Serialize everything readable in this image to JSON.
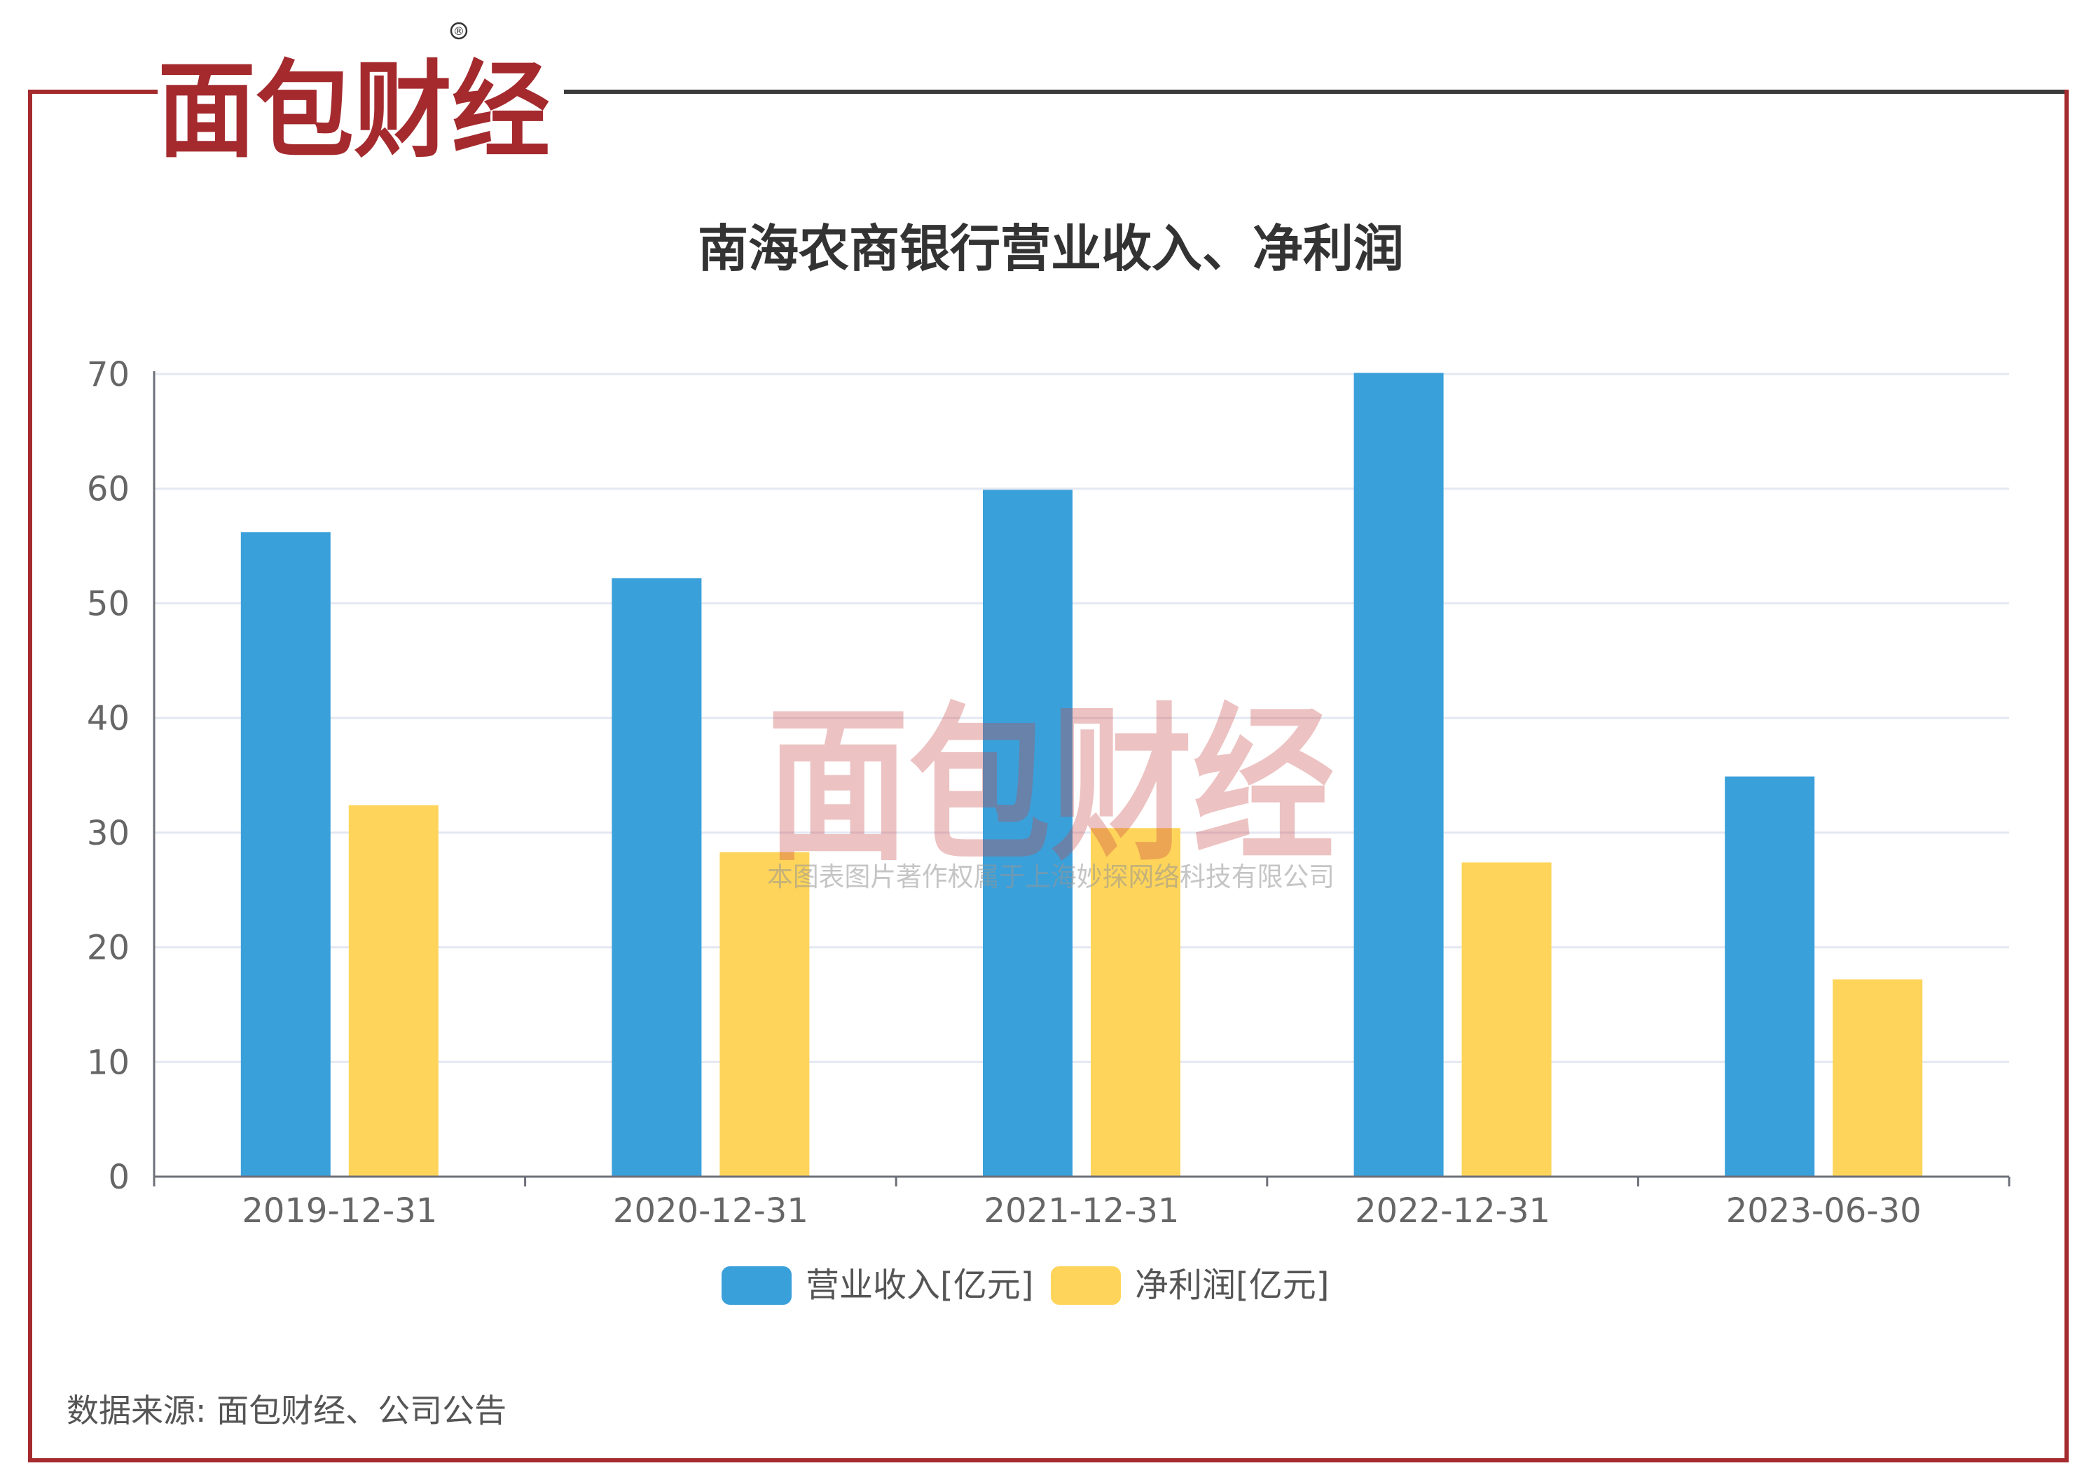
{
  "brand": {
    "logo_text": "面包财经",
    "registered_mark": "®",
    "red": "#a42a2e",
    "dark": "#303030"
  },
  "watermark": {
    "logo_text": "面包财经",
    "copyright": "本图表图片著作权属于上海妙探网络科技有限公司"
  },
  "source_note": "数据来源: 面包财经、公司公告",
  "chart_data": {
    "type": "bar",
    "title": "南海农商银行营业收入、净利润",
    "categories": [
      "2019-12-31",
      "2020-12-31",
      "2021-12-31",
      "2022-12-31",
      "2023-06-30"
    ],
    "series": [
      {
        "name": "营业收入[亿元]",
        "color": "#3aa0da",
        "values": [
          56.2,
          52.2,
          59.9,
          70.1,
          34.9
        ]
      },
      {
        "name": "净利润[亿元]",
        "color": "#fed55a",
        "values": [
          32.4,
          28.3,
          30.4,
          27.4,
          17.2
        ]
      }
    ],
    "ylim": [
      0,
      70
    ],
    "yticks": [
      0,
      10,
      20,
      30,
      40,
      50,
      60,
      70
    ],
    "xlabel": "",
    "ylabel": "",
    "grid": true,
    "legend": "bottom-center"
  }
}
